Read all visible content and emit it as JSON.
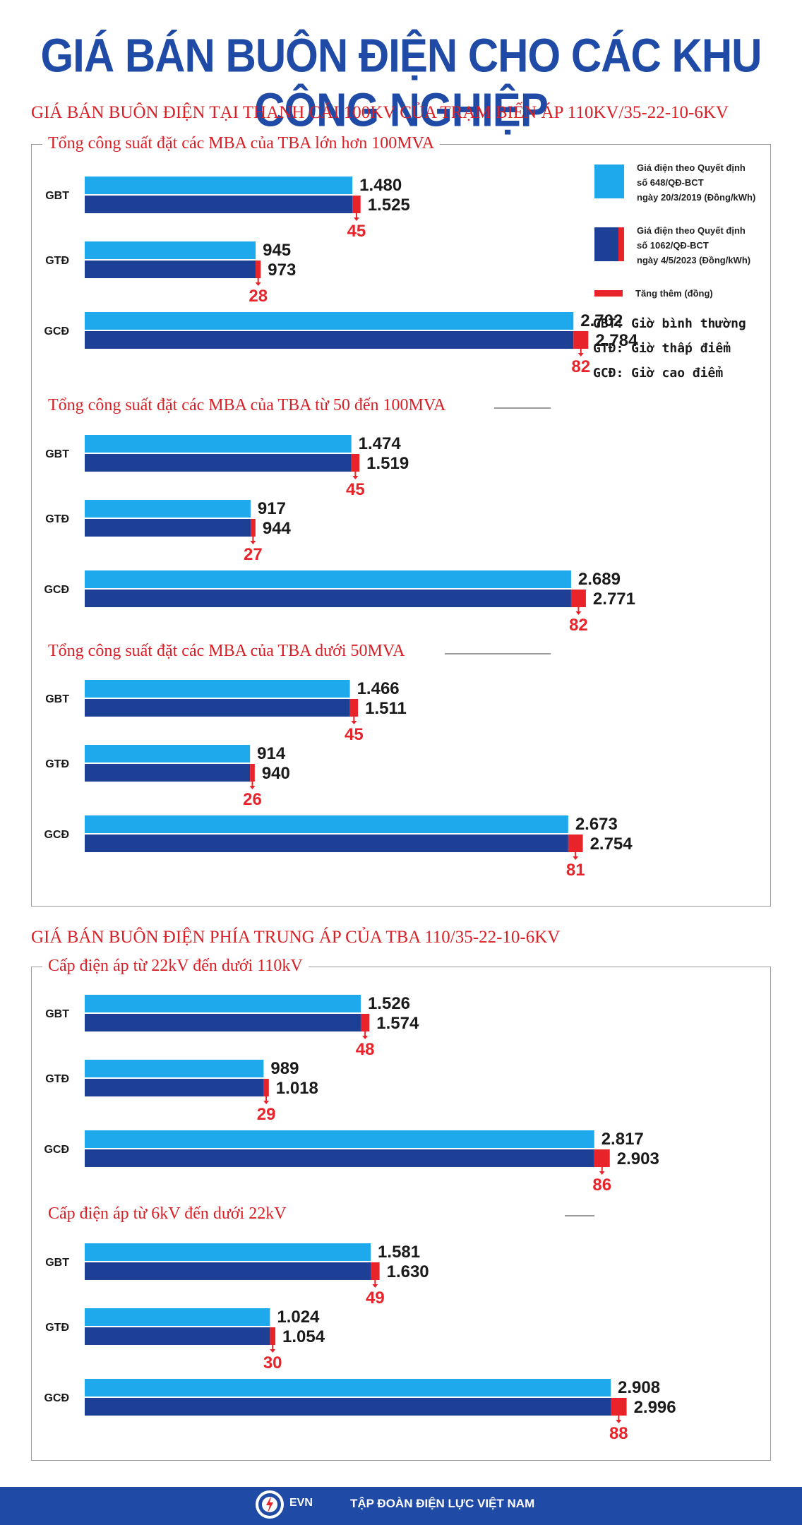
{
  "title": "GIÁ BÁN BUÔN ĐIỆN CHO CÁC KHU CÔNG NGHIỆP",
  "section1_heading": "GIÁ BÁN BUÔN ĐIỆN TẠI THANH CÁI 100KV CỦA TRẠM BIẾN ÁP 110KV/35-22-10-6KV",
  "section2_heading": "GIÁ BÁN BUÔN ĐIỆN PHÍA TRUNG ÁP CỦA TBA 110/35-22-10-6KV",
  "legend": {
    "old_label": "Giá điện theo Quyết định\nsố 648/QĐ-BCT\nngày 20/3/2019 (Đồng/kWh)",
    "new_label": "Giá điện theo Quyết định\nsố 1062/QĐ-BCT\nngày 4/5/2023 (Đồng/kWh)",
    "increase_label": "Tăng thêm (đồng)",
    "gbt": "GBT: Giờ bình thường",
    "gtd": "GTĐ: Giờ thấp điểm",
    "gcd": "GCĐ: Giờ cao điểm",
    "old_color": "#1ea9ec",
    "new_color": "#1e3f96",
    "increase_color": "#e8232a"
  },
  "footer": {
    "logo_text": "EVN",
    "org": "TẬP ĐOÀN ĐIỆN LỰC VIỆT NAM"
  },
  "chart_data": {
    "type": "bar",
    "orientation": "horizontal",
    "categories": [
      "GBT",
      "GTĐ",
      "GCĐ"
    ],
    "groups": [
      {
        "section": 1,
        "title": "Tổng công suất đặt các MBA của TBA lớn hơn 100MVA",
        "series": [
          {
            "name": "Giá điện theo Quyết định số 648/QĐ-BCT ngày 20/3/2019 (Đồng/kWh)",
            "values": [
              1480,
              945,
              2702
            ],
            "labels": [
              "1.480",
              "945",
              "2.702"
            ]
          },
          {
            "name": "Giá điện theo Quyết định số 1062/QĐ-BCT ngày 4/5/2023 (Đồng/kWh)",
            "values": [
              1525,
              973,
              2784
            ],
            "labels": [
              "1.525",
              "973",
              "2.784"
            ]
          }
        ],
        "increase": [
          45,
          28,
          82
        ]
      },
      {
        "section": 1,
        "title": "Tổng công suất đặt các MBA của TBA từ 50 đến 100MVA",
        "series": [
          {
            "name": "Giá điện theo Quyết định số 648/QĐ-BCT ngày 20/3/2019 (Đồng/kWh)",
            "values": [
              1474,
              917,
              2689
            ],
            "labels": [
              "1.474",
              "917",
              "2.689"
            ]
          },
          {
            "name": "Giá điện theo Quyết định số 1062/QĐ-BCT ngày 4/5/2023 (Đồng/kWh)",
            "values": [
              1519,
              944,
              2771
            ],
            "labels": [
              "1.519",
              "944",
              "2.771"
            ]
          }
        ],
        "increase": [
          45,
          27,
          82
        ]
      },
      {
        "section": 1,
        "title": "Tổng công suất đặt các MBA của TBA dưới 50MVA",
        "series": [
          {
            "name": "Giá điện theo Quyết định số 648/QĐ-BCT ngày 20/3/2019 (Đồng/kWh)",
            "values": [
              1466,
              914,
              2673
            ],
            "labels": [
              "1.466",
              "914",
              "2.673"
            ]
          },
          {
            "name": "Giá điện theo Quyết định số 1062/QĐ-BCT ngày 4/5/2023 (Đồng/kWh)",
            "values": [
              1511,
              940,
              2754
            ],
            "labels": [
              "1.511",
              "940",
              "2.754"
            ]
          }
        ],
        "increase": [
          45,
          26,
          81
        ]
      },
      {
        "section": 2,
        "title": "Cấp điện áp từ 22kV đến dưới 110kV",
        "series": [
          {
            "name": "Giá điện theo Quyết định số 648/QĐ-BCT ngày 20/3/2019 (Đồng/kWh)",
            "values": [
              1526,
              989,
              2817
            ],
            "labels": [
              "1.526",
              "989",
              "2.817"
            ]
          },
          {
            "name": "Giá điện theo Quyết định số 1062/QĐ-BCT ngày 4/5/2023 (Đồng/kWh)",
            "values": [
              1574,
              1018,
              2903
            ],
            "labels": [
              "1.574",
              "1.018",
              "2.903"
            ]
          }
        ],
        "increase": [
          48,
          29,
          86
        ]
      },
      {
        "section": 2,
        "title": "Cấp điện áp từ 6kV đến dưới 22kV",
        "series": [
          {
            "name": "Giá điện theo Quyết định số 648/QĐ-BCT ngày 20/3/2019 (Đồng/kWh)",
            "values": [
              1581,
              1024,
              2908
            ],
            "labels": [
              "1.581",
              "1.024",
              "2.908"
            ]
          },
          {
            "name": "Giá điện theo Quyết định số 1062/QĐ-BCT ngày 4/5/2023 (Đồng/kWh)",
            "values": [
              1630,
              1054,
              2996
            ],
            "labels": [
              "1.630",
              "1.054",
              "2.996"
            ]
          }
        ],
        "increase": [
          49,
          30,
          88
        ]
      }
    ]
  }
}
